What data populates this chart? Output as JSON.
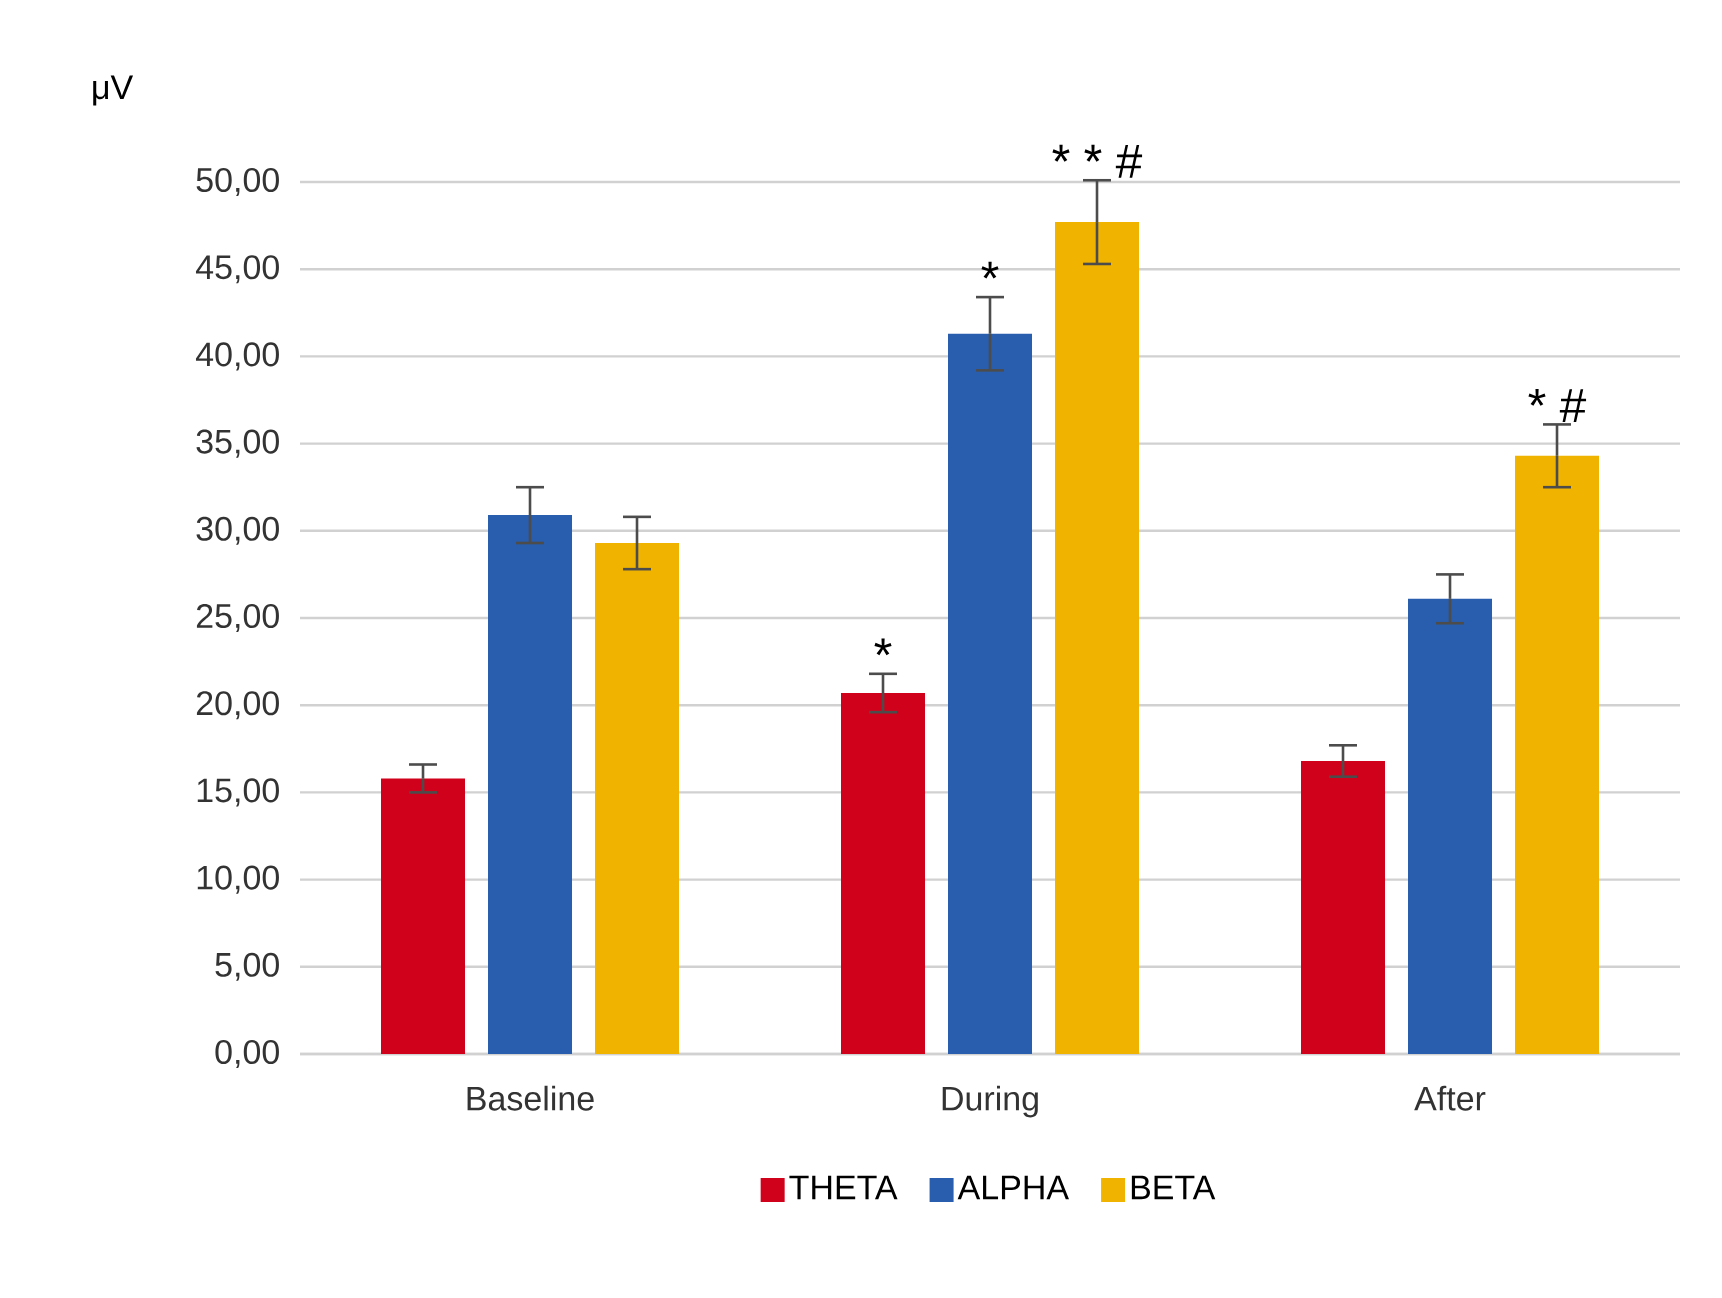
{
  "chart_data": {
    "type": "bar",
    "ylabel": "μV",
    "categories": [
      "Baseline",
      "During",
      "After"
    ],
    "series": [
      {
        "name": "THETA",
        "color": "#d0021b",
        "values": [
          15.8,
          20.7,
          16.8
        ],
        "errors": [
          0.8,
          1.1,
          0.9
        ]
      },
      {
        "name": "ALPHA",
        "color": "#295eae",
        "values": [
          30.9,
          41.3,
          26.1
        ],
        "errors": [
          1.6,
          2.1,
          1.4
        ]
      },
      {
        "name": "BETA",
        "color": "#f0b400",
        "values": [
          29.3,
          47.7,
          34.3
        ],
        "errors": [
          1.5,
          2.4,
          1.8
        ]
      }
    ],
    "ylim": [
      0,
      50
    ],
    "yticks": [
      {
        "value": 0,
        "label": "0,00"
      },
      {
        "value": 5,
        "label": "5,00"
      },
      {
        "value": 10,
        "label": "10,00"
      },
      {
        "value": 15,
        "label": "15,00"
      },
      {
        "value": 20,
        "label": "20,00"
      },
      {
        "value": 25,
        "label": "25,00"
      },
      {
        "value": 30,
        "label": "30,00"
      },
      {
        "value": 35,
        "label": "35,00"
      },
      {
        "value": 40,
        "label": "40,00"
      },
      {
        "value": 45,
        "label": "45,00"
      },
      {
        "value": 50,
        "label": "50,00"
      }
    ],
    "grid": "y",
    "legend": "bottom",
    "annotations": [
      "*",
      "*",
      "* * #",
      "* #"
    ]
  }
}
